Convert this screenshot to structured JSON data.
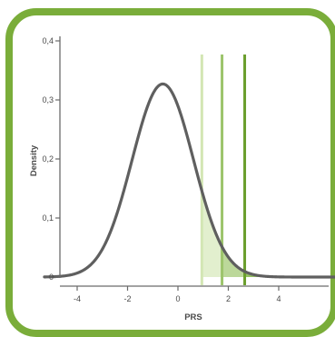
{
  "chart_data": {
    "type": "line",
    "title": "",
    "xlabel": "PRS",
    "ylabel": "Density",
    "xlim": [
      -5.3,
      6.3
    ],
    "ylim": [
      0,
      0.42
    ],
    "x_ticks": [
      -4,
      -2,
      0,
      2,
      4
    ],
    "x_tick_labels": [
      "-4",
      "-2",
      "0",
      "2",
      "4"
    ],
    "y_ticks": [
      0,
      0.1,
      0.2,
      0.3,
      0.4
    ],
    "y_tick_labels": [
      "0",
      "0,1",
      "0,2",
      "0,3",
      "0,4"
    ],
    "series": [
      {
        "distribution": "normal",
        "mean": -0.6,
        "sd": 1.22,
        "x_range": [
          -5.3,
          6.3
        ]
      }
    ],
    "thresholds": [
      {
        "x": 0.95,
        "shade_level": "light"
      },
      {
        "x": 1.75,
        "shade_level": "medium"
      },
      {
        "x": 2.65,
        "shade_level": "dark"
      }
    ],
    "grid": false,
    "colors": {
      "curve": "#5f5f5f",
      "axis": "#6a6a6a",
      "frame": "#7aad3a",
      "line_light": "#d3e6b4",
      "line_medium": "#9cc46b",
      "line_dark": "#6a9e2c",
      "fill_light": "#e2efce",
      "fill_medium": "#bcd89a",
      "fill_dark": "#94c063"
    }
  }
}
